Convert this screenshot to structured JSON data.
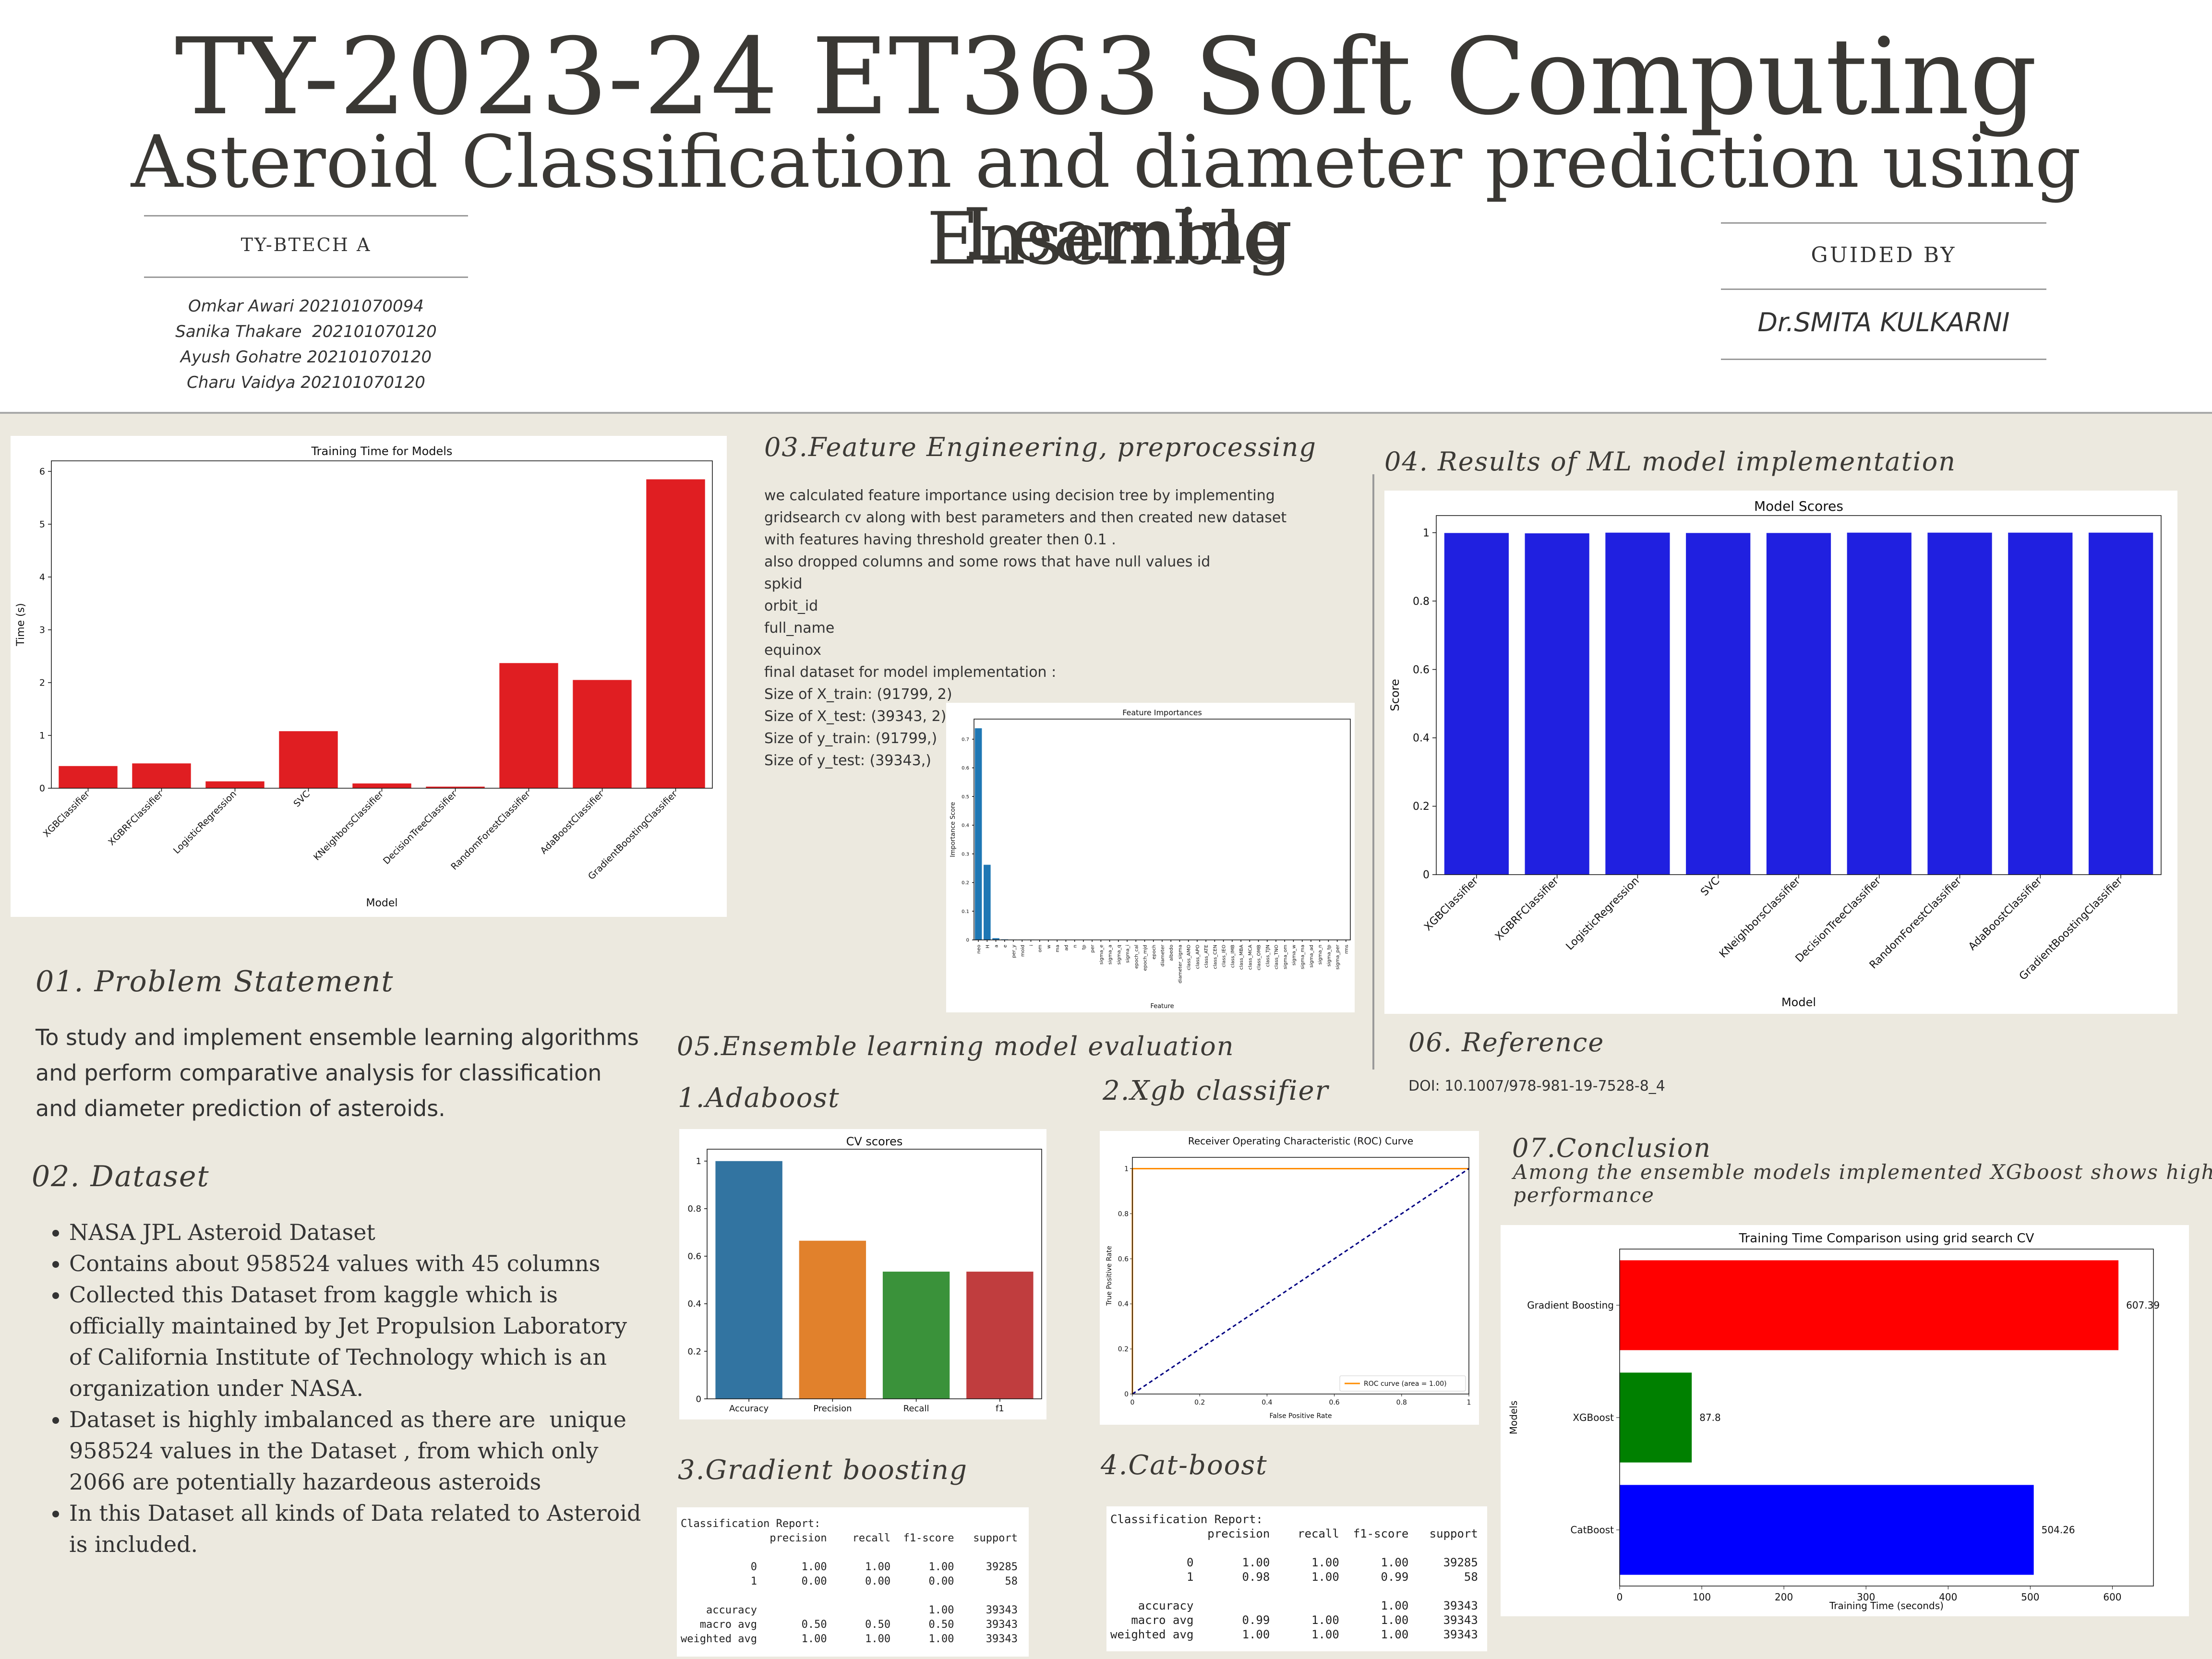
{
  "header": {
    "title": "TY-2023-24 ET363 Soft Computing",
    "subtitle_line1": "Asteroid Classification and diameter prediction using Ensemble",
    "subtitle_line2": "Learning",
    "class_label": "TY-BTECH A",
    "students": [
      "Omkar Awari 202101070094",
      "Sanika Thakare  202101070120",
      "Ayush Gohatre 202101070120",
      "Charu Vaidya 202101070120"
    ],
    "guided_by_label": "GUIDED BY",
    "guide_name": "Dr.SMITA KULKARNI"
  },
  "sections": {
    "problem": {
      "heading": "01. Problem Statement",
      "lines": [
        "To study and implement ensemble learning algorithms",
        "and perform comparative analysis for classification",
        "and diameter prediction of asteroids."
      ]
    },
    "dataset": {
      "heading": "02. Dataset",
      "bullets": [
        [
          "NASA JPL Asteroid Dataset"
        ],
        [
          "Contains about 958524 values with 45 columns"
        ],
        [
          "Collected this Dataset from kaggle which is",
          "officially maintained by Jet Propulsion Laboratory",
          "of California Institute of Technology which is an",
          "organization under NASA."
        ],
        [
          "Dataset is highly imbalanced as there are  unique",
          "958524 values in the Dataset , from which only",
          "2066 are potentially hazardeous asteroids"
        ],
        [
          "In this Dataset all kinds of Data related to Asteroid",
          "is included."
        ]
      ]
    },
    "feature": {
      "heading": "03.Feature Engineering, preprocessing",
      "lines": [
        "we calculated feature importance using decision tree by implementing",
        "gridsearch cv along with best parameters and then created new dataset",
        "with features having threshold greater then 0.1 .",
        "also dropped columns and some rows that have null values id",
        "spkid",
        "orbit_id",
        "full_name",
        "equinox",
        "final dataset for model implementation :",
        "Size of X_train: (91799, 2)",
        "Size of X_test: (39343, 2)",
        "Size of y_train: (91799,)",
        "Size of y_test: (39343,)"
      ]
    },
    "results": {
      "heading": "04. Results of ML model implementation"
    },
    "evaluation": {
      "heading": "05.Ensemble learning model evaluation",
      "adaboost": "1.Adaboost",
      "xgb": "2.Xgb classifier",
      "gb": "3.Gradient boosting",
      "cat": "4.Cat-boost"
    },
    "reference": {
      "heading": "06. Reference",
      "text": "DOI: 10.1007/978-981-19-7528-8_4"
    },
    "conclusion": {
      "heading": "07.Conclusion",
      "line1": "Among the ensemble models implemented XGboost shows highest",
      "line2": "performance"
    }
  },
  "reports": {
    "gb": [
      "Classification Report:",
      "              precision    recall  f1-score   support",
      "",
      "           0       1.00      1.00      1.00     39285",
      "           1       0.00      0.00      0.00        58",
      "",
      "    accuracy                           1.00     39343",
      "   macro avg       0.50      0.50      0.50     39343",
      "weighted avg       1.00      1.00      1.00     39343"
    ],
    "cat": [
      "Classification Report:",
      "              precision    recall  f1-score   support",
      "",
      "           0       1.00      1.00      1.00     39285",
      "           1       0.98      1.00      0.99        58",
      "",
      "    accuracy                           1.00     39343",
      "   macro avg       0.99      1.00      1.00     39343",
      "weighted avg       1.00      1.00      1.00     39343"
    ]
  },
  "colors": {
    "red": "#e01e22",
    "blue": "#2020e0",
    "tab_blue": "#1f77b4"
  },
  "chart_data": [
    {
      "id": "training_time",
      "type": "bar",
      "title": "Training Time for Models",
      "xlabel": "Model",
      "ylabel": "Time (s)",
      "categories": [
        "XGBClassifier",
        "XGBRFClassifier",
        "LogisticRegression",
        "SVC",
        "KNeighborsClassifier",
        "DecisionTreeClassifier",
        "RandomForestClassifier",
        "AdaBoostClassifier",
        "GradientBoostingClassifier"
      ],
      "values": [
        0.42,
        0.47,
        0.13,
        1.08,
        0.09,
        0.03,
        2.37,
        2.05,
        5.85
      ],
      "ylim": [
        0,
        6.2
      ],
      "yticks": [
        0,
        1,
        2,
        3,
        4,
        5,
        6
      ],
      "color": "#e01e22"
    },
    {
      "id": "feature_importances",
      "type": "bar",
      "title": "Feature Importances",
      "xlabel": "Feature",
      "ylabel": "Importance Score",
      "categories": [
        "neo",
        "H",
        "a",
        "e",
        "per_y",
        "moid",
        "i",
        "om",
        "w",
        "ma",
        "ad",
        "n",
        "tp",
        "per",
        "sigma_e",
        "sigma_a",
        "sigma_q",
        "sigma_i",
        "epoch_cal",
        "epoch_mjd",
        "epoch",
        "diameter",
        "albedo",
        "diameter_sigma",
        "class_AMO",
        "class_APO",
        "class_ATE",
        "class_CEN",
        "class_IEO",
        "class_IMB",
        "class_MBA",
        "class_MCA",
        "class_OMB",
        "class_TJN",
        "class_TNO",
        "sigma_om",
        "sigma_w",
        "sigma_ma",
        "sigma_ad",
        "sigma_n",
        "sigma_tp",
        "sigma_per",
        "rms"
      ],
      "values": [
        0.738,
        0.262,
        0.006,
        0.002,
        0.001,
        0.001,
        0.001,
        0,
        0,
        0,
        0,
        0,
        0,
        0,
        0,
        0,
        0,
        0,
        0,
        0,
        0,
        0,
        0,
        0,
        0,
        0,
        0,
        0,
        0,
        0,
        0,
        0,
        0,
        0,
        0,
        0,
        0,
        0,
        0,
        0,
        0,
        0,
        0
      ],
      "ylim": [
        0,
        0.77
      ],
      "yticks": [
        0,
        0.1,
        0.2,
        0.3,
        0.4,
        0.5,
        0.6,
        0.7
      ],
      "color": "#1f77b4"
    },
    {
      "id": "model_scores",
      "type": "bar",
      "title": "Model Scores",
      "xlabel": "Model",
      "ylabel": "Score",
      "categories": [
        "XGBClassifier",
        "XGBRFClassifier",
        "LogisticRegression",
        "SVC",
        "KNeighborsClassifier",
        "DecisionTreeClassifier",
        "RandomForestClassifier",
        "AdaBoostClassifier",
        "GradientBoostingClassifier"
      ],
      "values": [
        0.999,
        0.998,
        1.0,
        0.999,
        0.999,
        1.0,
        1.0,
        1.0,
        1.0
      ],
      "ylim": [
        0,
        1.05
      ],
      "yticks": [
        0,
        0.2,
        0.4,
        0.6,
        0.8,
        1.0
      ],
      "color": "#2020e0"
    },
    {
      "id": "cv_scores",
      "type": "bar",
      "title": "CV scores",
      "categories": [
        "Accuracy",
        "Precision",
        "Recall",
        "f1"
      ],
      "values": [
        1.0,
        0.665,
        0.535,
        0.535
      ],
      "colors": [
        "#3274a1",
        "#e1812c",
        "#3a923a",
        "#c03d3e"
      ],
      "ylim": [
        0,
        1.05
      ],
      "yticks": [
        0,
        0.2,
        0.4,
        0.6,
        0.8,
        1.0
      ]
    },
    {
      "id": "roc_curve",
      "type": "line",
      "title": "Receiver Operating Characteristic (ROC) Curve",
      "xlabel": "False Positive Rate",
      "ylabel": "True Positive Rate",
      "series": [
        {
          "name": "ROC curve (area = 1.00)",
          "x": [
            0,
            0,
            1
          ],
          "y": [
            0,
            1,
            1
          ],
          "color": "#ff8c00"
        },
        {
          "x": [
            0,
            1
          ],
          "y": [
            0,
            1
          ],
          "color": "#000080",
          "dash": true
        }
      ],
      "xlim": [
        0,
        1.0
      ],
      "ylim": [
        0,
        1.05
      ],
      "xticks": [
        0,
        0.2,
        0.4,
        0.6,
        0.8,
        1.0
      ],
      "yticks": [
        0,
        0.2,
        0.4,
        0.6,
        0.8,
        1.0
      ],
      "legend": "lower-right"
    },
    {
      "id": "gridsearch_time",
      "type": "bar",
      "orientation": "horizontal",
      "title": "Training Time Comparison using grid search CV",
      "xlabel": "Training Time (seconds)",
      "ylabel": "Models",
      "categories": [
        "Gradient Boosting",
        "XGBoost",
        "CatBoost"
      ],
      "values": [
        607.39,
        87.8,
        504.26
      ],
      "value_labels": [
        "607.39",
        "87.8",
        "504.26"
      ],
      "colors": [
        "#ff0000",
        "#008000",
        "#0000ff"
      ],
      "xlim": [
        0,
        650
      ],
      "xticks": [
        0,
        100,
        200,
        300,
        400,
        500,
        600
      ]
    }
  ]
}
